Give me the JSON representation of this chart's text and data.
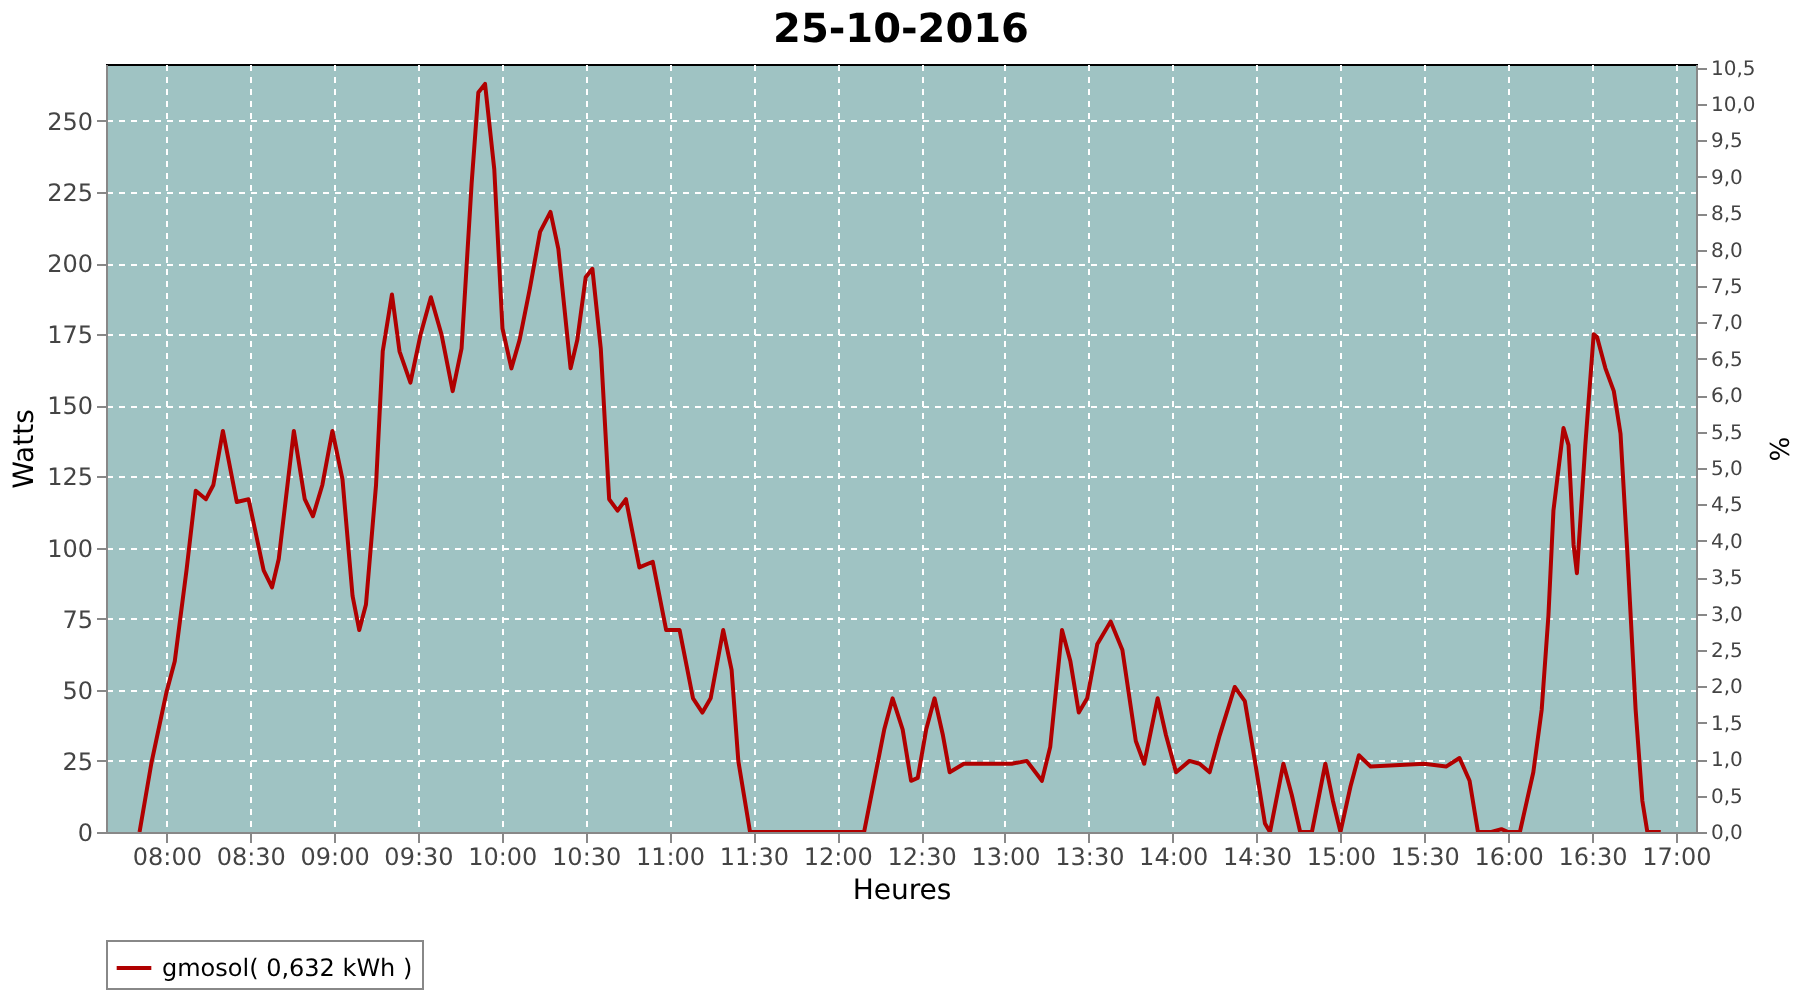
{
  "chart_data": {
    "type": "line",
    "title": "25-10-2016",
    "xlabel": "Heures",
    "ylabel": "Watts",
    "y2label": "%",
    "xlim": [
      7.64,
      17.12
    ],
    "xticks": [
      {
        "value": 8,
        "label": "08:00"
      },
      {
        "value": 8.5,
        "label": "08:30"
      },
      {
        "value": 9,
        "label": "09:00"
      },
      {
        "value": 9.5,
        "label": "09:30"
      },
      {
        "value": 10,
        "label": "10:00"
      },
      {
        "value": 10.5,
        "label": "10:30"
      },
      {
        "value": 11,
        "label": "11:00"
      },
      {
        "value": 11.5,
        "label": "11:30"
      },
      {
        "value": 12,
        "label": "12:00"
      },
      {
        "value": 12.5,
        "label": "12:30"
      },
      {
        "value": 13,
        "label": "13:00"
      },
      {
        "value": 13.5,
        "label": "13:30"
      },
      {
        "value": 14,
        "label": "14:00"
      },
      {
        "value": 14.5,
        "label": "14:30"
      },
      {
        "value": 15,
        "label": "15:00"
      },
      {
        "value": 15.5,
        "label": "15:30"
      },
      {
        "value": 16,
        "label": "16:00"
      },
      {
        "value": 16.5,
        "label": "16:30"
      },
      {
        "value": 17,
        "label": "17:00"
      }
    ],
    "ylim": [
      0,
      270
    ],
    "yticks": [
      0,
      25,
      50,
      75,
      100,
      125,
      150,
      175,
      200,
      225,
      250
    ],
    "y2lim": [
      0,
      10.55
    ],
    "y2ticks": [
      {
        "value": 0,
        "label": "0,0"
      },
      {
        "value": 0.5,
        "label": "0,5"
      },
      {
        "value": 1,
        "label": "1,0"
      },
      {
        "value": 1.5,
        "label": "1,5"
      },
      {
        "value": 2,
        "label": "2,0"
      },
      {
        "value": 2.5,
        "label": "2,5"
      },
      {
        "value": 3,
        "label": "3,0"
      },
      {
        "value": 3.5,
        "label": "3,5"
      },
      {
        "value": 4,
        "label": "4,0"
      },
      {
        "value": 4.5,
        "label": "4,5"
      },
      {
        "value": 5,
        "label": "5,0"
      },
      {
        "value": 5.5,
        "label": "5,5"
      },
      {
        "value": 6,
        "label": "6,0"
      },
      {
        "value": 6.5,
        "label": "6,5"
      },
      {
        "value": 7,
        "label": "7,0"
      },
      {
        "value": 7.5,
        "label": "7,5"
      },
      {
        "value": 8,
        "label": "8,0"
      },
      {
        "value": 8.5,
        "label": "8,5"
      },
      {
        "value": 9,
        "label": "9,0"
      },
      {
        "value": 9.5,
        "label": "9,5"
      },
      {
        "value": 10,
        "label": "10,0"
      },
      {
        "value": 10.5,
        "label": "10,5"
      }
    ],
    "grid": true,
    "legend": "bottom",
    "marker": "none",
    "line_style": "solid",
    "series": [
      {
        "name": "gmosol( 0,632 kWh )",
        "color": "#b00000",
        "x": [
          7.84,
          7.91,
          8.0,
          8.05,
          8.12,
          8.175,
          8.236,
          8.28,
          8.337,
          8.42,
          8.49,
          8.58,
          8.63,
          8.67,
          8.76,
          8.825,
          8.874,
          8.93,
          8.99,
          9.05,
          9.11,
          9.15,
          9.19,
          9.25,
          9.29,
          9.345,
          9.39,
          9.455,
          9.516,
          9.577,
          9.64,
          9.707,
          9.76,
          9.82,
          9.86,
          9.9,
          9.955,
          10.004,
          10.057,
          10.106,
          10.167,
          10.228,
          10.29,
          10.337,
          10.41,
          10.45,
          10.5,
          10.54,
          10.59,
          10.64,
          10.69,
          10.74,
          10.82,
          10.9,
          10.98,
          11.06,
          11.14,
          11.196,
          11.245,
          11.32,
          11.37,
          11.41,
          11.48,
          11.59,
          12.16,
          12.22,
          12.28,
          12.33,
          12.39,
          12.44,
          12.48,
          12.53,
          12.58,
          12.63,
          12.67,
          12.755,
          12.857,
          13.04,
          13.13,
          13.22,
          13.27,
          13.34,
          13.39,
          13.44,
          13.49,
          13.55,
          13.63,
          13.7,
          13.78,
          13.83,
          13.91,
          13.96,
          14.02,
          14.1,
          14.16,
          14.22,
          14.28,
          14.37,
          14.43,
          14.49,
          14.55,
          14.58,
          14.66,
          14.71,
          14.76,
          14.83,
          14.91,
          14.955,
          15.0,
          15.06,
          15.11,
          15.18,
          15.5,
          15.63,
          15.71,
          15.77,
          15.82,
          15.9,
          15.96,
          16.0,
          16.07,
          16.15,
          16.2,
          16.24,
          16.27,
          16.33,
          16.36,
          16.39,
          16.41,
          16.46,
          16.51,
          16.53,
          16.58,
          16.63,
          16.67,
          16.71,
          16.76,
          16.8,
          16.83,
          16.91
        ],
        "values": [
          0,
          24,
          49,
          60,
          92,
          120,
          117,
          122,
          141,
          116,
          117,
          92,
          86,
          96,
          141,
          117,
          111,
          122,
          141,
          124,
          83,
          71,
          80,
          122,
          169,
          189,
          169,
          158,
          175,
          188,
          175,
          155,
          170,
          228,
          260,
          263,
          233,
          177,
          163,
          173,
          191,
          211,
          218,
          205,
          163,
          173,
          195,
          198,
          170,
          117,
          113,
          117,
          93,
          95,
          71,
          71,
          47,
          42,
          47,
          71,
          57,
          25,
          0,
          0,
          0,
          18,
          36,
          47,
          36,
          18,
          19,
          36,
          47,
          34,
          21,
          24,
          24,
          24,
          25,
          18,
          30,
          71,
          60,
          42,
          47,
          66,
          74,
          64,
          32,
          24,
          47,
          34,
          21,
          25,
          24,
          21,
          34,
          51,
          46,
          25,
          3,
          0,
          24,
          13,
          0,
          0,
          24,
          11,
          0,
          16,
          27,
          23,
          24,
          23,
          26,
          18,
          0,
          0,
          1,
          0,
          0,
          21,
          43,
          76,
          113,
          142,
          136,
          101,
          91,
          136,
          175,
          174,
          163,
          155,
          140,
          99,
          43,
          11,
          0,
          0
        ]
      }
    ]
  }
}
